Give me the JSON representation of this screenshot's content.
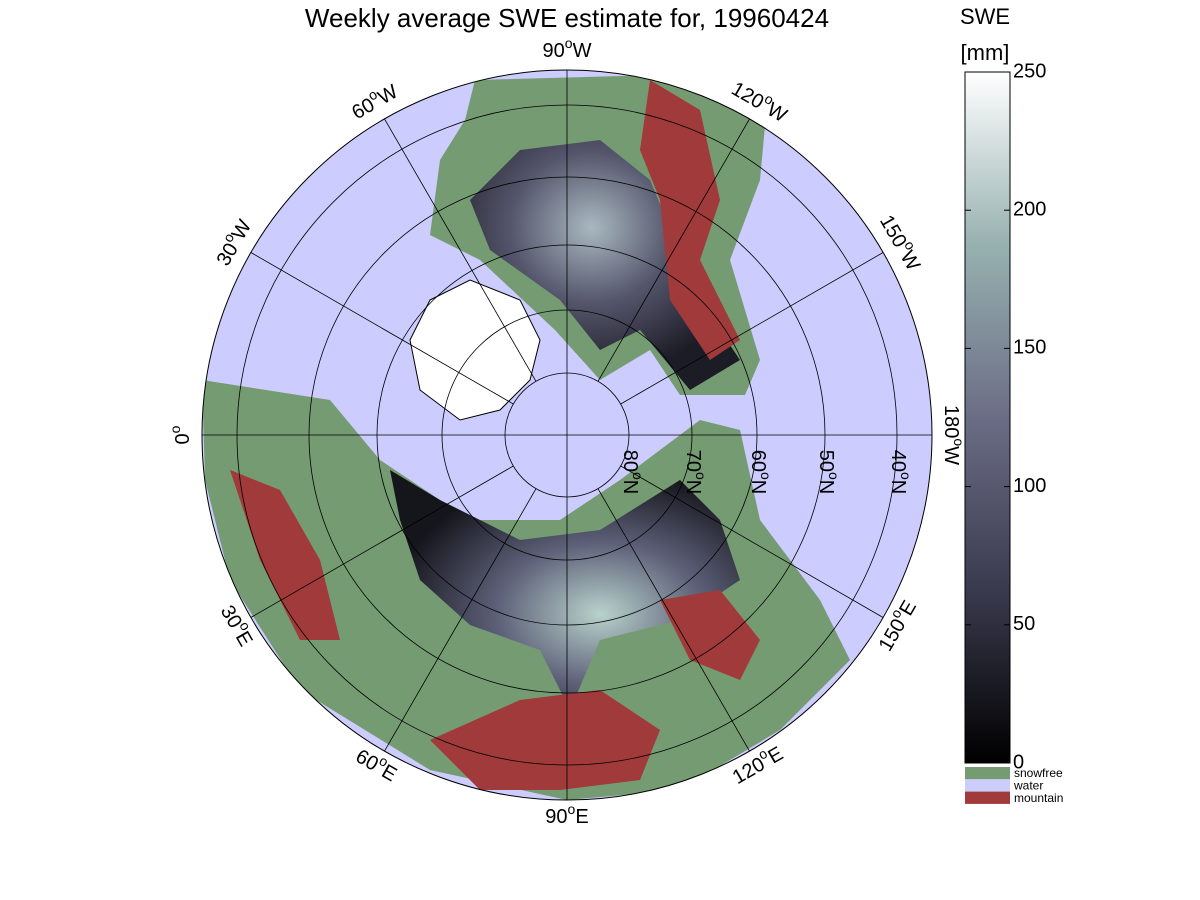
{
  "title": "Weekly average SWE estimate for, 19960424",
  "colorbar": {
    "label_lines": [
      "SWE",
      "[mm]"
    ],
    "lim": [
      0,
      250
    ],
    "ticks": [
      0,
      50,
      100,
      150,
      200,
      250
    ]
  },
  "legend": [
    {
      "label": "snowfree",
      "color": "#759b73"
    },
    {
      "label": "water",
      "color": "#ccccff"
    },
    {
      "label": "mountain",
      "color": "#a13a3a"
    }
  ],
  "longitude_labels": [
    {
      "deg": "0",
      "sup": "o"
    },
    {
      "deg": "30",
      "sup": "o",
      "dir": "W"
    },
    {
      "deg": "60",
      "sup": "o",
      "dir": "W"
    },
    {
      "deg": "90",
      "sup": "o",
      "dir": "W"
    },
    {
      "deg": "120",
      "sup": "o",
      "dir": "W"
    },
    {
      "deg": "150",
      "sup": "o",
      "dir": "W"
    },
    {
      "deg": "180",
      "sup": "o",
      "dir": "W"
    },
    {
      "deg": "150",
      "sup": "o",
      "dir": "E"
    },
    {
      "deg": "120",
      "sup": "o",
      "dir": "E"
    },
    {
      "deg": "90",
      "sup": "o",
      "dir": "E"
    },
    {
      "deg": "60",
      "sup": "o",
      "dir": "E"
    },
    {
      "deg": "30",
      "sup": "o",
      "dir": "E"
    }
  ],
  "latitude_labels": [
    {
      "deg": "80",
      "sup": "o",
      "dir": "N"
    },
    {
      "deg": "70",
      "sup": "o",
      "dir": "N"
    },
    {
      "deg": "60",
      "sup": "o",
      "dir": "N"
    },
    {
      "deg": "50",
      "sup": "o",
      "dir": "N"
    },
    {
      "deg": "40",
      "sup": "o",
      "dir": "N"
    }
  ]
}
